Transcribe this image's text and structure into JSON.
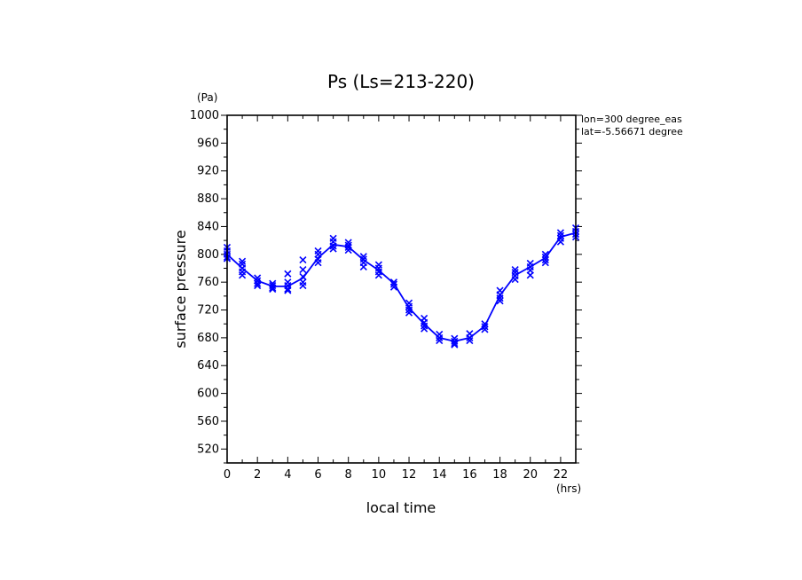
{
  "chart_data": {
    "type": "line",
    "title": "Ps (Ls=213-220)",
    "xlabel": "local time",
    "ylabel": "surface pressure",
    "x_unit": "(hrs)",
    "y_unit": "(Pa)",
    "xlim": [
      0,
      23
    ],
    "ylim": [
      500,
      1000
    ],
    "x_ticks": [
      0,
      2,
      4,
      6,
      8,
      10,
      12,
      14,
      16,
      18,
      20,
      22
    ],
    "y_ticks": [
      520,
      560,
      600,
      640,
      680,
      720,
      760,
      800,
      840,
      880,
      920,
      960,
      1000
    ],
    "annotations": [
      "lon=300 degree_eas",
      "lat=-5.56671 degree"
    ],
    "colors": {
      "series": "#0000ff",
      "axes": "#000000"
    },
    "series": [
      {
        "style": "line",
        "x": [
          0,
          1,
          2,
          3,
          4,
          5,
          6,
          7,
          8,
          9,
          10,
          11,
          12,
          13,
          14,
          15,
          16,
          17,
          18,
          19,
          20,
          21,
          22,
          23
        ],
        "y": [
          800,
          780,
          762,
          754,
          754,
          766,
          795,
          814,
          811,
          792,
          777,
          758,
          723,
          700,
          680,
          675,
          680,
          697,
          741,
          770,
          782,
          795,
          825,
          831
        ]
      },
      {
        "style": "markers",
        "marker": "x",
        "x": [
          0,
          0,
          0,
          0,
          0,
          1,
          1,
          1,
          1,
          1,
          2,
          2,
          2,
          2,
          3,
          3,
          3,
          3,
          4,
          4,
          4,
          4,
          4,
          5,
          5,
          5,
          5,
          5,
          6,
          6,
          6,
          6,
          7,
          7,
          7,
          7,
          8,
          8,
          8,
          8,
          9,
          9,
          9,
          9,
          10,
          10,
          10,
          10,
          11,
          11,
          11,
          12,
          12,
          12,
          12,
          13,
          13,
          13,
          13,
          14,
          14,
          14,
          15,
          15,
          15,
          15,
          16,
          16,
          16,
          17,
          17,
          17,
          18,
          18,
          18,
          18,
          19,
          19,
          19,
          19,
          20,
          20,
          20,
          20,
          21,
          21,
          21,
          21,
          22,
          22,
          22,
          22,
          23,
          23,
          23,
          23
        ],
        "y": [
          810,
          805,
          800,
          796,
          794,
          790,
          786,
          780,
          775,
          770,
          766,
          762,
          758,
          755,
          758,
          755,
          752,
          750,
          772,
          760,
          755,
          750,
          748,
          792,
          778,
          768,
          760,
          755,
          805,
          800,
          793,
          788,
          823,
          818,
          812,
          808,
          817,
          813,
          810,
          806,
          797,
          793,
          788,
          782,
          785,
          780,
          775,
          770,
          760,
          757,
          753,
          730,
          725,
          720,
          716,
          708,
          702,
          697,
          693,
          685,
          680,
          676,
          679,
          675,
          672,
          670,
          686,
          680,
          676,
          700,
          696,
          692,
          748,
          742,
          737,
          733,
          778,
          774,
          769,
          764,
          787,
          782,
          777,
          770,
          800,
          796,
          792,
          788,
          831,
          827,
          823,
          818,
          838,
          833,
          829,
          825
        ]
      }
    ]
  }
}
